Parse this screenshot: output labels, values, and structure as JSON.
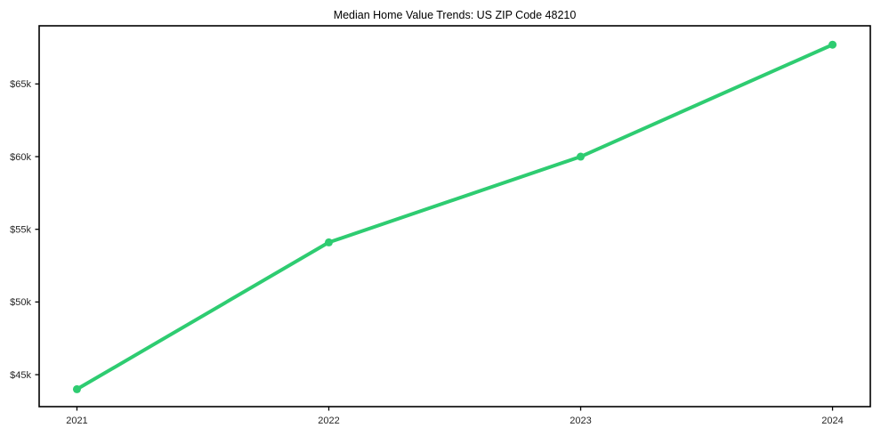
{
  "chart_data": {
    "type": "line",
    "title": "Median Home Value Trends: US ZIP Code 48210",
    "x": [
      2021,
      2022,
      2023,
      2024
    ],
    "series": [
      {
        "values": [
          44000,
          54100,
          60000,
          67700
        ],
        "color": "#2ecc71",
        "marker": "circle"
      }
    ],
    "xticks": {
      "values": [
        2021,
        2022,
        2023,
        2024
      ],
      "labels": [
        "2021",
        "2022",
        "2023",
        "2024"
      ]
    },
    "yticks": {
      "values": [
        45000,
        50000,
        55000,
        60000,
        65000
      ],
      "labels": [
        "$45k",
        "$50k",
        "$55k",
        "$60k",
        "$65k"
      ]
    },
    "xlim": [
      2020.85,
      2024.15
    ],
    "ylim": [
      42800,
      69000
    ],
    "grid": false,
    "legend": false,
    "colors": {
      "axis": "#000000",
      "tick_label": "#262626",
      "title": "#000000",
      "background": "#ffffff"
    }
  }
}
